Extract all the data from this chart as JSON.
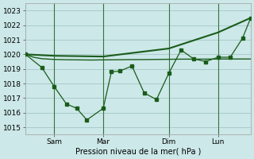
{
  "background_color": "#cce8e8",
  "grid_color": "#aacccc",
  "line_color": "#1a5c1a",
  "xlabel": "Pression niveau de la mer( hPa )",
  "ylim": [
    1014.5,
    1023.5
  ],
  "yticks": [
    1015,
    1016,
    1017,
    1018,
    1019,
    1020,
    1021,
    1022,
    1023
  ],
  "x_tick_labels": [
    "Sam",
    "Mar",
    "Dim",
    "Lun"
  ],
  "x_vline_positions": [
    14,
    38,
    70,
    94
  ],
  "line1_x": [
    0,
    4,
    8,
    14,
    20,
    26,
    32,
    38,
    46,
    52,
    58,
    64,
    70,
    76,
    82,
    88,
    94,
    100,
    106,
    110
  ],
  "line1_y": [
    1020.0,
    1019.8,
    1019.7,
    1019.65,
    1019.63,
    1019.62,
    1019.61,
    1019.62,
    1019.63,
    1019.64,
    1019.64,
    1019.65,
    1019.66,
    1019.67,
    1019.67,
    1019.67,
    1019.68,
    1019.68,
    1019.68,
    1019.68
  ],
  "line2_x": [
    0,
    14,
    38,
    70,
    94,
    110
  ],
  "line2_y": [
    1020.0,
    1019.9,
    1019.85,
    1020.4,
    1021.5,
    1022.5
  ],
  "line3_x": [
    0,
    8,
    14,
    20,
    25,
    30,
    38,
    42,
    46,
    52,
    58,
    64,
    70,
    76,
    82,
    88,
    94,
    100,
    106,
    110
  ],
  "line3_y": [
    1020.0,
    1019.1,
    1017.8,
    1016.6,
    1016.3,
    1015.5,
    1016.3,
    1018.8,
    1018.85,
    1019.2,
    1017.35,
    1016.9,
    1018.7,
    1020.3,
    1019.7,
    1019.5,
    1019.8,
    1019.8,
    1021.1,
    1022.5
  ]
}
